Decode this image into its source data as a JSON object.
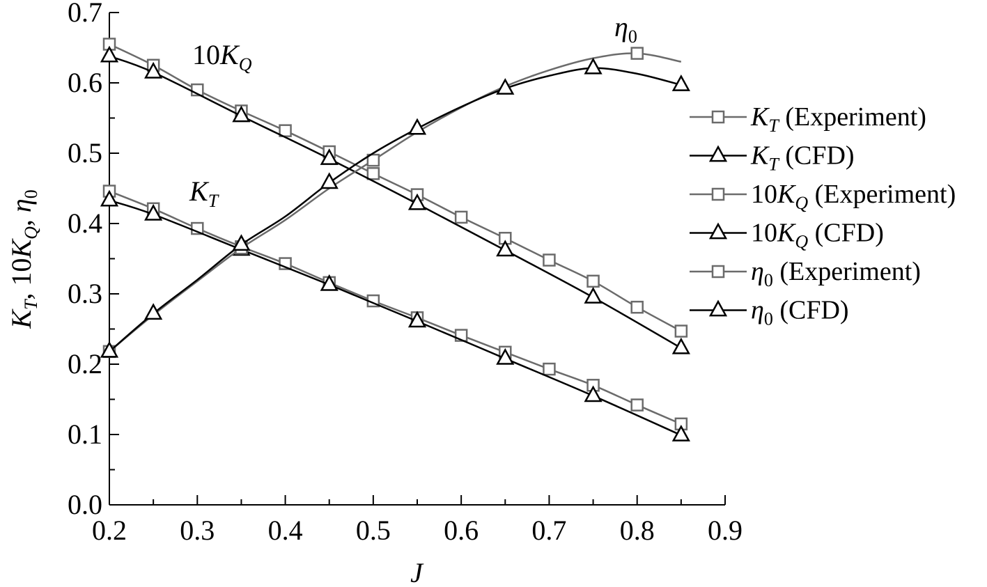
{
  "chart_data": {
    "type": "line",
    "xlabel": "J",
    "ylabel": "K_T, 10K_Q, η_0",
    "xlim": [
      0.2,
      0.9
    ],
    "ylim": [
      0.0,
      0.7
    ],
    "x_ticks": [
      "0.2",
      "0.3",
      "0.4",
      "0.5",
      "0.6",
      "0.7",
      "0.8",
      "0.9"
    ],
    "y_ticks": [
      "0.0",
      "0.1",
      "0.2",
      "0.3",
      "0.4",
      "0.5",
      "0.6",
      "0.7"
    ],
    "grid": false,
    "legend_position": "right",
    "colors": {
      "experiment": "#6b6b6b",
      "cfd": "#000000"
    },
    "annotations": [
      {
        "text": "10K_Q",
        "near_series": "10K_Q"
      },
      {
        "text": "K_T",
        "near_series": "K_T"
      },
      {
        "text": "η_0",
        "near_series": "η_0"
      }
    ],
    "series": [
      {
        "name": "K_T (Experiment)",
        "quantity": "K_T",
        "source": "Experiment",
        "marker": "square",
        "x": [
          0.2,
          0.25,
          0.3,
          0.35,
          0.4,
          0.45,
          0.5,
          0.55,
          0.6,
          0.65,
          0.7,
          0.75,
          0.8,
          0.85
        ],
        "y": [
          0.446,
          0.421,
          0.393,
          0.367,
          0.343,
          0.316,
          0.29,
          0.266,
          0.241,
          0.217,
          0.193,
          0.17,
          0.142,
          0.115
        ]
      },
      {
        "name": "K_T (CFD)",
        "quantity": "K_T",
        "source": "CFD",
        "marker": "triangle",
        "x": [
          0.2,
          0.25,
          0.35,
          0.45,
          0.55,
          0.65,
          0.75,
          0.85
        ],
        "y": [
          0.433,
          0.413,
          0.363,
          0.313,
          0.261,
          0.208,
          0.155,
          0.099
        ]
      },
      {
        "name": "10K_Q (Experiment)",
        "quantity": "10K_Q",
        "source": "Experiment",
        "marker": "square",
        "x": [
          0.2,
          0.25,
          0.3,
          0.35,
          0.4,
          0.45,
          0.5,
          0.55,
          0.6,
          0.65,
          0.7,
          0.75,
          0.8,
          0.85
        ],
        "y": [
          0.655,
          0.625,
          0.59,
          0.56,
          0.532,
          0.502,
          0.471,
          0.441,
          0.409,
          0.379,
          0.348,
          0.318,
          0.281,
          0.247
        ]
      },
      {
        "name": "10K_Q (CFD)",
        "quantity": "10K_Q",
        "source": "CFD",
        "marker": "triangle",
        "x": [
          0.2,
          0.25,
          0.35,
          0.45,
          0.55,
          0.65,
          0.75,
          0.85
        ],
        "y": [
          0.638,
          0.615,
          0.553,
          0.492,
          0.428,
          0.362,
          0.295,
          0.223
        ]
      },
      {
        "name": "η_0 (Experiment)",
        "quantity": "η_0",
        "source": "Experiment",
        "marker": "square",
        "x": [
          0.2,
          0.35,
          0.5,
          0.8
        ],
        "y": [
          0.218,
          0.365,
          0.49,
          0.642
        ],
        "curve_x": [
          0.2,
          0.25,
          0.3,
          0.35,
          0.4,
          0.45,
          0.5,
          0.55,
          0.6,
          0.65,
          0.7,
          0.75,
          0.8,
          0.85
        ],
        "curve_y": [
          0.218,
          0.27,
          0.318,
          0.365,
          0.405,
          0.45,
          0.49,
          0.53,
          0.565,
          0.595,
          0.618,
          0.635,
          0.642,
          0.63
        ]
      },
      {
        "name": "η_0 (CFD)",
        "quantity": "η_0",
        "source": "CFD",
        "marker": "triangle",
        "x": [
          0.2,
          0.25,
          0.35,
          0.45,
          0.55,
          0.65,
          0.75,
          0.85
        ],
        "y": [
          0.218,
          0.272,
          0.37,
          0.458,
          0.535,
          0.592,
          0.621,
          0.597
        ],
        "curve_x": [
          0.2,
          0.25,
          0.3,
          0.35,
          0.4,
          0.45,
          0.5,
          0.55,
          0.6,
          0.65,
          0.7,
          0.75,
          0.8,
          0.85
        ],
        "curve_y": [
          0.218,
          0.272,
          0.32,
          0.37,
          0.41,
          0.458,
          0.5,
          0.535,
          0.566,
          0.592,
          0.61,
          0.621,
          0.613,
          0.597
        ]
      }
    ]
  }
}
